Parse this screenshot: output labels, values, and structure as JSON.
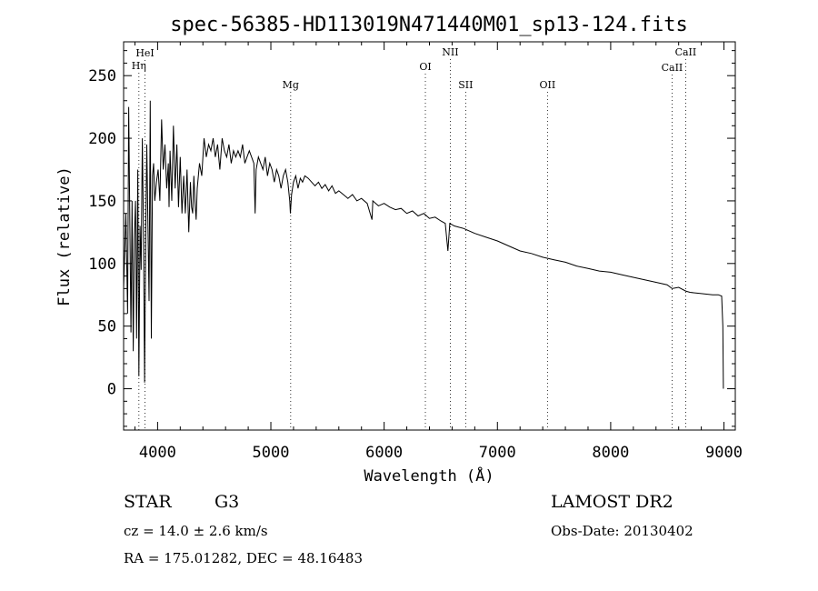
{
  "chart_data": {
    "type": "line",
    "title": "spec-56385-HD113019N471440M01_sp13-124.fits",
    "xlabel": "Wavelength (Å)",
    "ylabel": "Flux (relative)",
    "xlim": [
      3700,
      9100
    ],
    "ylim": [
      -33,
      277
    ],
    "xticks": [
      4000,
      5000,
      6000,
      7000,
      8000,
      9000
    ],
    "yticks": [
      0,
      50,
      100,
      150,
      200,
      250
    ],
    "grid": false,
    "series": [
      {
        "x": [
          3700,
          3720,
          3735,
          3745,
          3755,
          3765,
          3775,
          3785,
          3795,
          3805,
          3815,
          3825,
          3835,
          3845,
          3855,
          3865,
          3875,
          3885,
          3895,
          3905,
          3915,
          3925,
          3935,
          3945,
          3955,
          3965,
          3975,
          3990,
          4005,
          4020,
          4035,
          4050,
          4065,
          4080,
          4095,
          4101,
          4110,
          4125,
          4140,
          4155,
          4170,
          4185,
          4200,
          4215,
          4230,
          4245,
          4260,
          4275,
          4290,
          4300,
          4310,
          4320,
          4330,
          4340,
          4350,
          4370,
          4390,
          4410,
          4430,
          4450,
          4470,
          4490,
          4510,
          4530,
          4550,
          4570,
          4590,
          4610,
          4630,
          4650,
          4670,
          4690,
          4710,
          4730,
          4750,
          4770,
          4790,
          4810,
          4830,
          4850,
          4861,
          4870,
          4890,
          4910,
          4930,
          4950,
          4970,
          4990,
          5010,
          5030,
          5050,
          5070,
          5090,
          5110,
          5130,
          5150,
          5167,
          5172,
          5183,
          5200,
          5220,
          5240,
          5260,
          5280,
          5300,
          5330,
          5360,
          5390,
          5420,
          5450,
          5480,
          5510,
          5540,
          5570,
          5600,
          5640,
          5680,
          5720,
          5760,
          5800,
          5850,
          5893,
          5900,
          5950,
          6000,
          6050,
          6100,
          6150,
          6200,
          6250,
          6300,
          6350,
          6400,
          6450,
          6500,
          6540,
          6563,
          6580,
          6620,
          6700,
          6800,
          6900,
          7000,
          7100,
          7200,
          7300,
          7400,
          7500,
          7600,
          7700,
          7800,
          7900,
          8000,
          8100,
          8200,
          8300,
          8400,
          8498,
          8542,
          8600,
          8662,
          8700,
          8800,
          8900,
          8950,
          8980,
          8990,
          8995
        ],
        "values": [
          80,
          140,
          60,
          225,
          130,
          45,
          150,
          30,
          120,
          150,
          40,
          175,
          10,
          130,
          95,
          200,
          130,
          5,
          120,
          195,
          130,
          70,
          230,
          40,
          170,
          180,
          150,
          165,
          175,
          150,
          215,
          175,
          195,
          160,
          180,
          145,
          190,
          150,
          210,
          160,
          195,
          145,
          185,
          140,
          170,
          140,
          175,
          125,
          165,
          145,
          140,
          170,
          150,
          135,
          160,
          180,
          170,
          200,
          185,
          195,
          190,
          200,
          185,
          195,
          175,
          200,
          190,
          185,
          195,
          180,
          190,
          185,
          190,
          185,
          195,
          180,
          185,
          190,
          185,
          180,
          140,
          175,
          185,
          180,
          175,
          185,
          170,
          180,
          175,
          165,
          175,
          170,
          160,
          170,
          175,
          165,
          150,
          140,
          155,
          165,
          170,
          160,
          168,
          165,
          170,
          168,
          165,
          162,
          165,
          160,
          163,
          158,
          162,
          156,
          158,
          155,
          152,
          155,
          150,
          152,
          148,
          135,
          150,
          146,
          148,
          145,
          143,
          144,
          140,
          142,
          138,
          140,
          136,
          137,
          134,
          132,
          110,
          132,
          130,
          128,
          124,
          121,
          118,
          114,
          110,
          108,
          105,
          103,
          101,
          98,
          96,
          94,
          93,
          91,
          89,
          87,
          85,
          83,
          80,
          81,
          78,
          77,
          76,
          75,
          75,
          74,
          50,
          0
        ]
      }
    ],
    "annotations": [
      {
        "label": "Hη",
        "x": 3835
      },
      {
        "label": "HeI",
        "x": 3889
      },
      {
        "label": "Mg",
        "x": 5175
      },
      {
        "label": "OI",
        "x": 6364
      },
      {
        "label": "NII",
        "x": 6584
      },
      {
        "label": "SII",
        "x": 6720
      },
      {
        "label": "OII",
        "x": 7442
      },
      {
        "label": "CaII",
        "x": 8542
      },
      {
        "label": "CaII",
        "x": 8662
      }
    ]
  },
  "info": {
    "object_type": "STAR",
    "subclass": "G3",
    "survey": "LAMOST DR2",
    "cz": "cz = 14.0 ± 2.6 km/s",
    "obs_date": "Obs-Date: 20130402",
    "coords": "RA = 175.01282, DEC =  48.16483"
  }
}
